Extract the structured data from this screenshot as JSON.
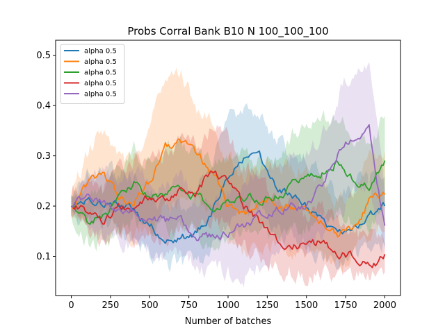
{
  "chart_data": {
    "type": "line",
    "title": "Probs Corral Bank B10 N 100_100_100",
    "xlabel": "Number of batches",
    "ylabel": "",
    "xlim": [
      -100,
      2100
    ],
    "ylim": [
      0.022,
      0.53
    ],
    "xticks": [
      0,
      250,
      500,
      750,
      1000,
      1250,
      1500,
      1750,
      2000
    ],
    "yticks": [
      0.1,
      0.2,
      0.3,
      0.4,
      0.5
    ],
    "grid": false,
    "legend_position": "top-left",
    "band": "shaded range around each series",
    "series": [
      {
        "name": "alpha 0.5",
        "color": "#1f77b4",
        "x": [
          0,
          100,
          200,
          300,
          400,
          500,
          600,
          700,
          800,
          900,
          1000,
          1100,
          1200,
          1300,
          1400,
          1500,
          1600,
          1700,
          1800,
          1900,
          2000
        ],
        "values": [
          0.2,
          0.22,
          0.21,
          0.21,
          0.19,
          0.16,
          0.14,
          0.13,
          0.15,
          0.19,
          0.26,
          0.29,
          0.3,
          0.24,
          0.22,
          0.2,
          0.17,
          0.15,
          0.16,
          0.18,
          0.2
        ],
        "lower": [
          0.18,
          0.17,
          0.16,
          0.15,
          0.13,
          0.11,
          0.09,
          0.08,
          0.09,
          0.12,
          0.17,
          0.19,
          0.2,
          0.16,
          0.14,
          0.12,
          0.1,
          0.09,
          0.1,
          0.11,
          0.13
        ],
        "upper": [
          0.22,
          0.27,
          0.27,
          0.27,
          0.26,
          0.22,
          0.2,
          0.19,
          0.22,
          0.28,
          0.37,
          0.4,
          0.38,
          0.33,
          0.3,
          0.3,
          0.26,
          0.22,
          0.24,
          0.25,
          0.27
        ]
      },
      {
        "name": "alpha 0.5",
        "color": "#ff7f0e",
        "x": [
          0,
          100,
          200,
          300,
          400,
          500,
          600,
          700,
          800,
          900,
          1000,
          1100,
          1200,
          1300,
          1400,
          1500,
          1600,
          1700,
          1800,
          1900,
          2000
        ],
        "values": [
          0.2,
          0.24,
          0.27,
          0.22,
          0.21,
          0.25,
          0.32,
          0.33,
          0.3,
          0.27,
          0.2,
          0.18,
          0.2,
          0.21,
          0.2,
          0.19,
          0.17,
          0.14,
          0.16,
          0.21,
          0.23
        ],
        "lower": [
          0.18,
          0.18,
          0.19,
          0.15,
          0.14,
          0.16,
          0.2,
          0.22,
          0.21,
          0.19,
          0.13,
          0.11,
          0.12,
          0.13,
          0.12,
          0.11,
          0.1,
          0.08,
          0.1,
          0.14,
          0.16
        ],
        "upper": [
          0.22,
          0.3,
          0.35,
          0.29,
          0.29,
          0.36,
          0.46,
          0.46,
          0.4,
          0.36,
          0.29,
          0.26,
          0.28,
          0.29,
          0.28,
          0.27,
          0.25,
          0.21,
          0.23,
          0.3,
          0.3
        ]
      },
      {
        "name": "alpha 0.5",
        "color": "#2ca02c",
        "x": [
          0,
          100,
          200,
          300,
          400,
          500,
          600,
          700,
          800,
          900,
          1000,
          1100,
          1200,
          1300,
          1400,
          1500,
          1600,
          1700,
          1800,
          1900,
          2000
        ],
        "values": [
          0.2,
          0.17,
          0.18,
          0.21,
          0.24,
          0.22,
          0.23,
          0.23,
          0.22,
          0.2,
          0.21,
          0.22,
          0.21,
          0.22,
          0.24,
          0.26,
          0.27,
          0.29,
          0.25,
          0.24,
          0.28
        ],
        "lower": [
          0.18,
          0.13,
          0.13,
          0.15,
          0.17,
          0.15,
          0.15,
          0.15,
          0.14,
          0.13,
          0.14,
          0.14,
          0.14,
          0.14,
          0.15,
          0.16,
          0.17,
          0.19,
          0.16,
          0.16,
          0.2
        ],
        "upper": [
          0.22,
          0.21,
          0.23,
          0.28,
          0.31,
          0.3,
          0.31,
          0.32,
          0.31,
          0.28,
          0.29,
          0.3,
          0.29,
          0.3,
          0.34,
          0.37,
          0.37,
          0.38,
          0.34,
          0.33,
          0.38
        ]
      },
      {
        "name": "alpha 0.5",
        "color": "#d62728",
        "x": [
          0,
          100,
          200,
          300,
          400,
          500,
          600,
          700,
          800,
          900,
          1000,
          1100,
          1200,
          1300,
          1400,
          1500,
          1600,
          1700,
          1800,
          1900,
          2000
        ],
        "values": [
          0.2,
          0.19,
          0.17,
          0.2,
          0.2,
          0.22,
          0.21,
          0.24,
          0.23,
          0.27,
          0.25,
          0.2,
          0.17,
          0.14,
          0.12,
          0.12,
          0.13,
          0.11,
          0.1,
          0.08,
          0.1
        ],
        "lower": [
          0.18,
          0.15,
          0.13,
          0.14,
          0.13,
          0.14,
          0.13,
          0.16,
          0.15,
          0.18,
          0.16,
          0.12,
          0.1,
          0.08,
          0.07,
          0.06,
          0.07,
          0.06,
          0.06,
          0.06,
          0.07
        ],
        "upper": [
          0.22,
          0.24,
          0.23,
          0.27,
          0.28,
          0.3,
          0.3,
          0.33,
          0.32,
          0.36,
          0.34,
          0.28,
          0.25,
          0.21,
          0.2,
          0.18,
          0.19,
          0.17,
          0.15,
          0.13,
          0.14
        ]
      },
      {
        "name": "alpha 0.5",
        "color": "#9467bd",
        "x": [
          0,
          100,
          200,
          300,
          400,
          500,
          600,
          700,
          800,
          900,
          1000,
          1100,
          1200,
          1300,
          1400,
          1500,
          1600,
          1700,
          1800,
          1900,
          2000
        ],
        "values": [
          0.2,
          0.22,
          0.21,
          0.19,
          0.2,
          0.18,
          0.17,
          0.18,
          0.14,
          0.14,
          0.15,
          0.16,
          0.18,
          0.19,
          0.2,
          0.2,
          0.24,
          0.3,
          0.34,
          0.36,
          0.15
        ],
        "lower": [
          0.18,
          0.17,
          0.15,
          0.13,
          0.13,
          0.11,
          0.1,
          0.1,
          0.08,
          0.07,
          0.07,
          0.06,
          0.08,
          0.1,
          0.11,
          0.11,
          0.14,
          0.18,
          0.22,
          0.24,
          0.1
        ],
        "upper": [
          0.22,
          0.27,
          0.27,
          0.26,
          0.27,
          0.25,
          0.24,
          0.26,
          0.21,
          0.21,
          0.23,
          0.25,
          0.27,
          0.28,
          0.29,
          0.3,
          0.34,
          0.42,
          0.47,
          0.49,
          0.22
        ]
      }
    ]
  }
}
